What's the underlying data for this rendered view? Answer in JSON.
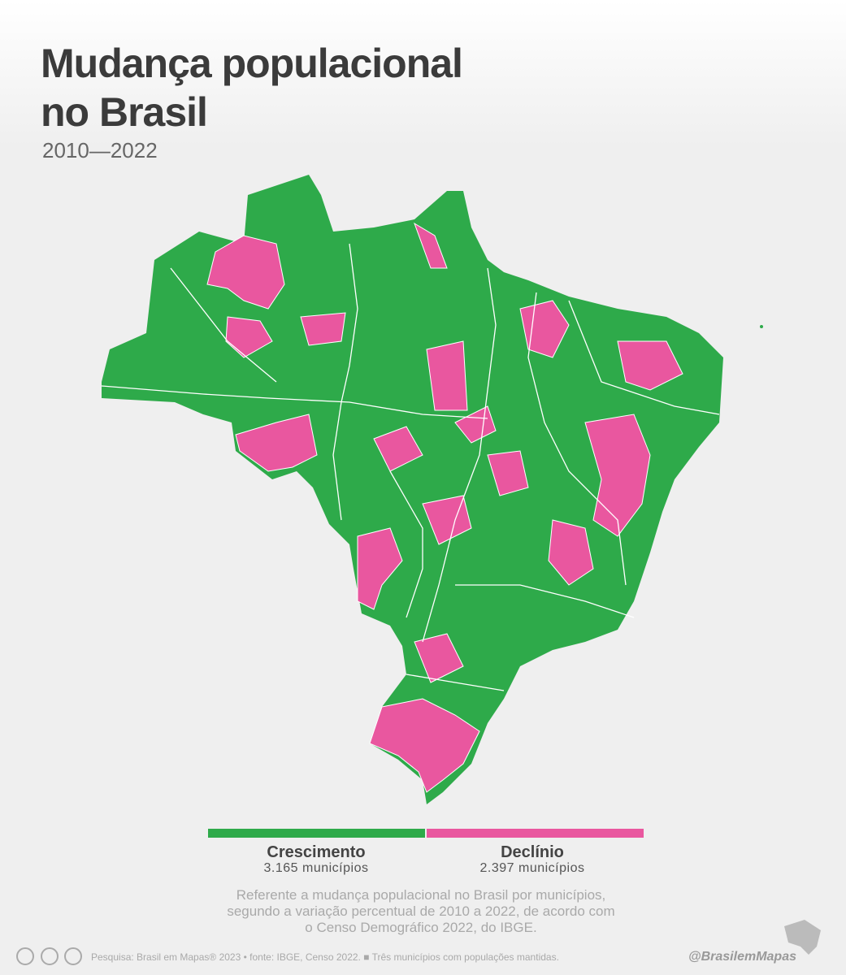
{
  "header": {
    "title_lines": [
      "Mudança populacional",
      "no Brasil"
    ],
    "subtitle": "2010—2022"
  },
  "legend": {
    "items": [
      {
        "label": "Crescimento",
        "count": "3.165 municípios",
        "color": "#2eaa4a"
      },
      {
        "label": "Declínio",
        "count": "2.397 municípios",
        "color": "#e9579f"
      }
    ]
  },
  "note": {
    "lines": [
      "Referente a mudança populacional no Brasil por municípios,",
      "segundo a variação percentual de 2010 a 2022, de acordo com",
      "o Censo Demográfico 2022, do IBGE."
    ]
  },
  "footer": {
    "source": "Pesquisa: Brasil em Mapas® 2023 • fonte: IBGE, Censo 2022. ■ Três municípios com populações mantidas.",
    "handle": "@BrasilemMapas"
  }
}
